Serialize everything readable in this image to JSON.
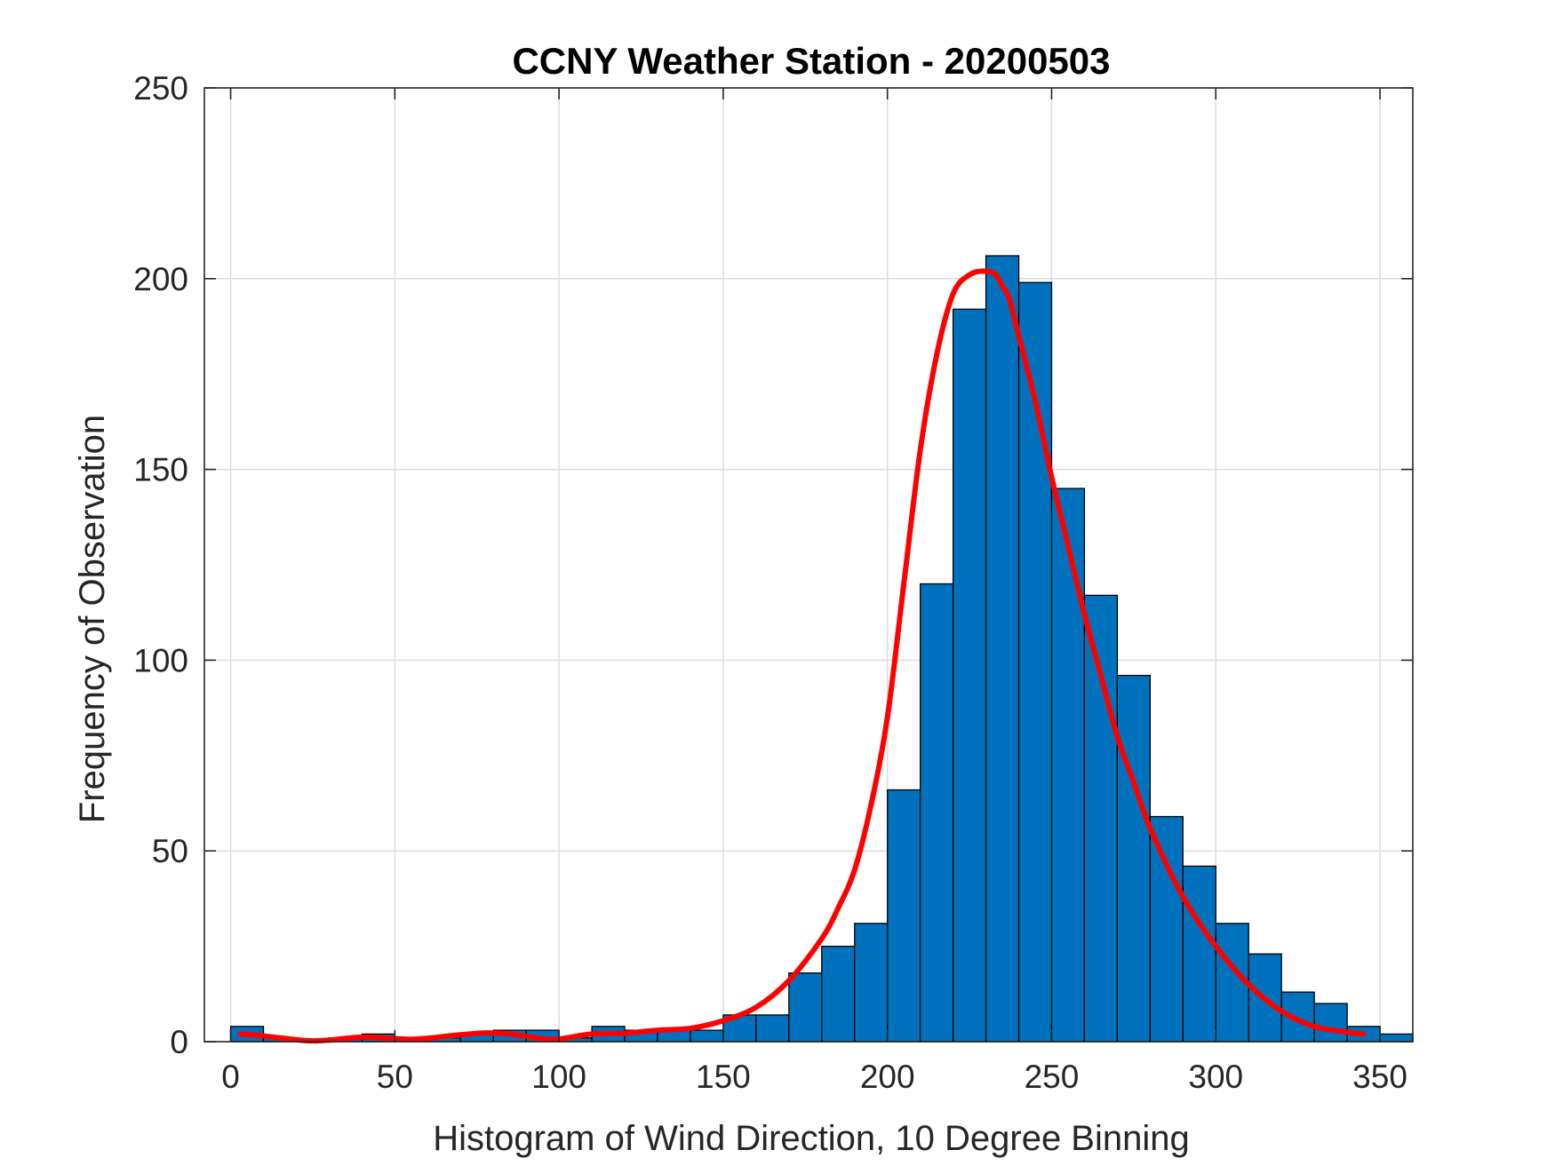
{
  "chart_data": {
    "type": "bar",
    "title": "CCNY Weather Station - 20200503",
    "xlabel": "Histogram of Wind Direction, 10 Degree Binning",
    "ylabel": "Frequency of Observation",
    "xlim": [
      -8,
      360
    ],
    "ylim": [
      0,
      250
    ],
    "xticks": [
      0,
      50,
      100,
      150,
      200,
      250,
      300,
      350
    ],
    "yticks": [
      0,
      50,
      100,
      150,
      200,
      250
    ],
    "grid": true,
    "bin_width": 10,
    "series": [
      {
        "kind": "histogram",
        "bin_edges": [
          0,
          10,
          20,
          30,
          40,
          50,
          60,
          70,
          80,
          90,
          100,
          110,
          120,
          130,
          140,
          150,
          160,
          170,
          180,
          190,
          200,
          210,
          220,
          230,
          240,
          250,
          260,
          270,
          280,
          290,
          300,
          310,
          320,
          330,
          340,
          350,
          360
        ],
        "values": [
          4,
          1,
          0,
          1,
          2,
          1,
          1,
          2,
          3,
          3,
          1,
          4,
          3,
          3,
          3,
          7,
          7,
          18,
          25,
          31,
          66,
          120,
          192,
          206,
          199,
          145,
          117,
          96,
          59,
          46,
          31,
          23,
          13,
          10,
          4,
          2
        ],
        "color": "#0072BD"
      },
      {
        "kind": "line",
        "x": [
          3,
          10,
          20,
          25,
          30,
          40,
          50,
          55,
          60,
          70,
          78,
          85,
          95,
          100,
          110,
          120,
          130,
          140,
          150,
          160,
          170,
          180,
          185,
          190,
          195,
          200,
          205,
          210,
          215,
          220,
          225,
          230,
          233,
          235,
          237,
          240,
          245,
          250,
          255,
          260,
          265,
          270,
          275,
          280,
          290,
          300,
          310,
          320,
          330,
          340,
          345
        ],
        "values": [
          2,
          1.5,
          0.5,
          0.2,
          0.4,
          1.2,
          0.8,
          0.6,
          0.9,
          1.8,
          2.3,
          2.0,
          0.8,
          0.7,
          2.0,
          2.2,
          3.0,
          3.5,
          5.5,
          9,
          16,
          27,
          35,
          45,
          62,
          85,
          120,
          155,
          180,
          196,
          201,
          202,
          201,
          198,
          195,
          185,
          168,
          148,
          130,
          112,
          96,
          80,
          68,
          56,
          38,
          25,
          15,
          8,
          4,
          2.5,
          2
        ],
        "color": "#FF0000"
      }
    ]
  }
}
